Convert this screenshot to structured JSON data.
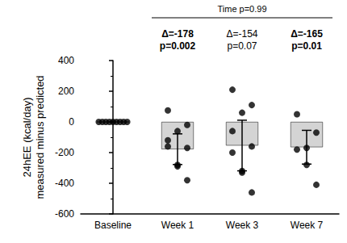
{
  "chart_data": {
    "type": "bar",
    "y_label": [
      "24hEE (kcal/day)",
      "measured minus predicted"
    ],
    "categories": [
      "Baseline",
      "Week 1",
      "Week 3",
      "Week 7"
    ],
    "values": [
      0,
      -178,
      -154,
      -165
    ],
    "error": [
      null,
      100,
      165,
      110
    ],
    "points": [
      [
        0,
        0,
        0,
        0,
        0,
        0,
        0,
        0,
        0
      ],
      [
        75,
        -280,
        -20,
        -160,
        -60,
        -380,
        -120,
        -290,
        -170
      ],
      [
        210,
        -320,
        110,
        -200,
        60,
        -460,
        -60,
        -330,
        -160
      ],
      [
        50,
        -280,
        -70,
        -180,
        -170,
        -410
      ]
    ],
    "color": "#d4d4d4",
    "point_color": "#000000",
    "ylim": [
      -600,
      400
    ],
    "yticks": [
      -600,
      -400,
      -200,
      0,
      200,
      400
    ],
    "grid": false,
    "header": {
      "text": "Time p=0.99",
      "from": "Week 1",
      "to": "Week 7"
    },
    "annotations": [
      {
        "category": "Week 1",
        "lines": [
          "Δ=-178",
          "p=0.002"
        ],
        "bold": true
      },
      {
        "category": "Week 3",
        "lines": [
          "Δ=-154",
          "p=0.07"
        ],
        "bold": false
      },
      {
        "category": "Week 7",
        "lines": [
          "Δ=-165",
          "p=0.01"
        ],
        "bold": true
      }
    ]
  }
}
